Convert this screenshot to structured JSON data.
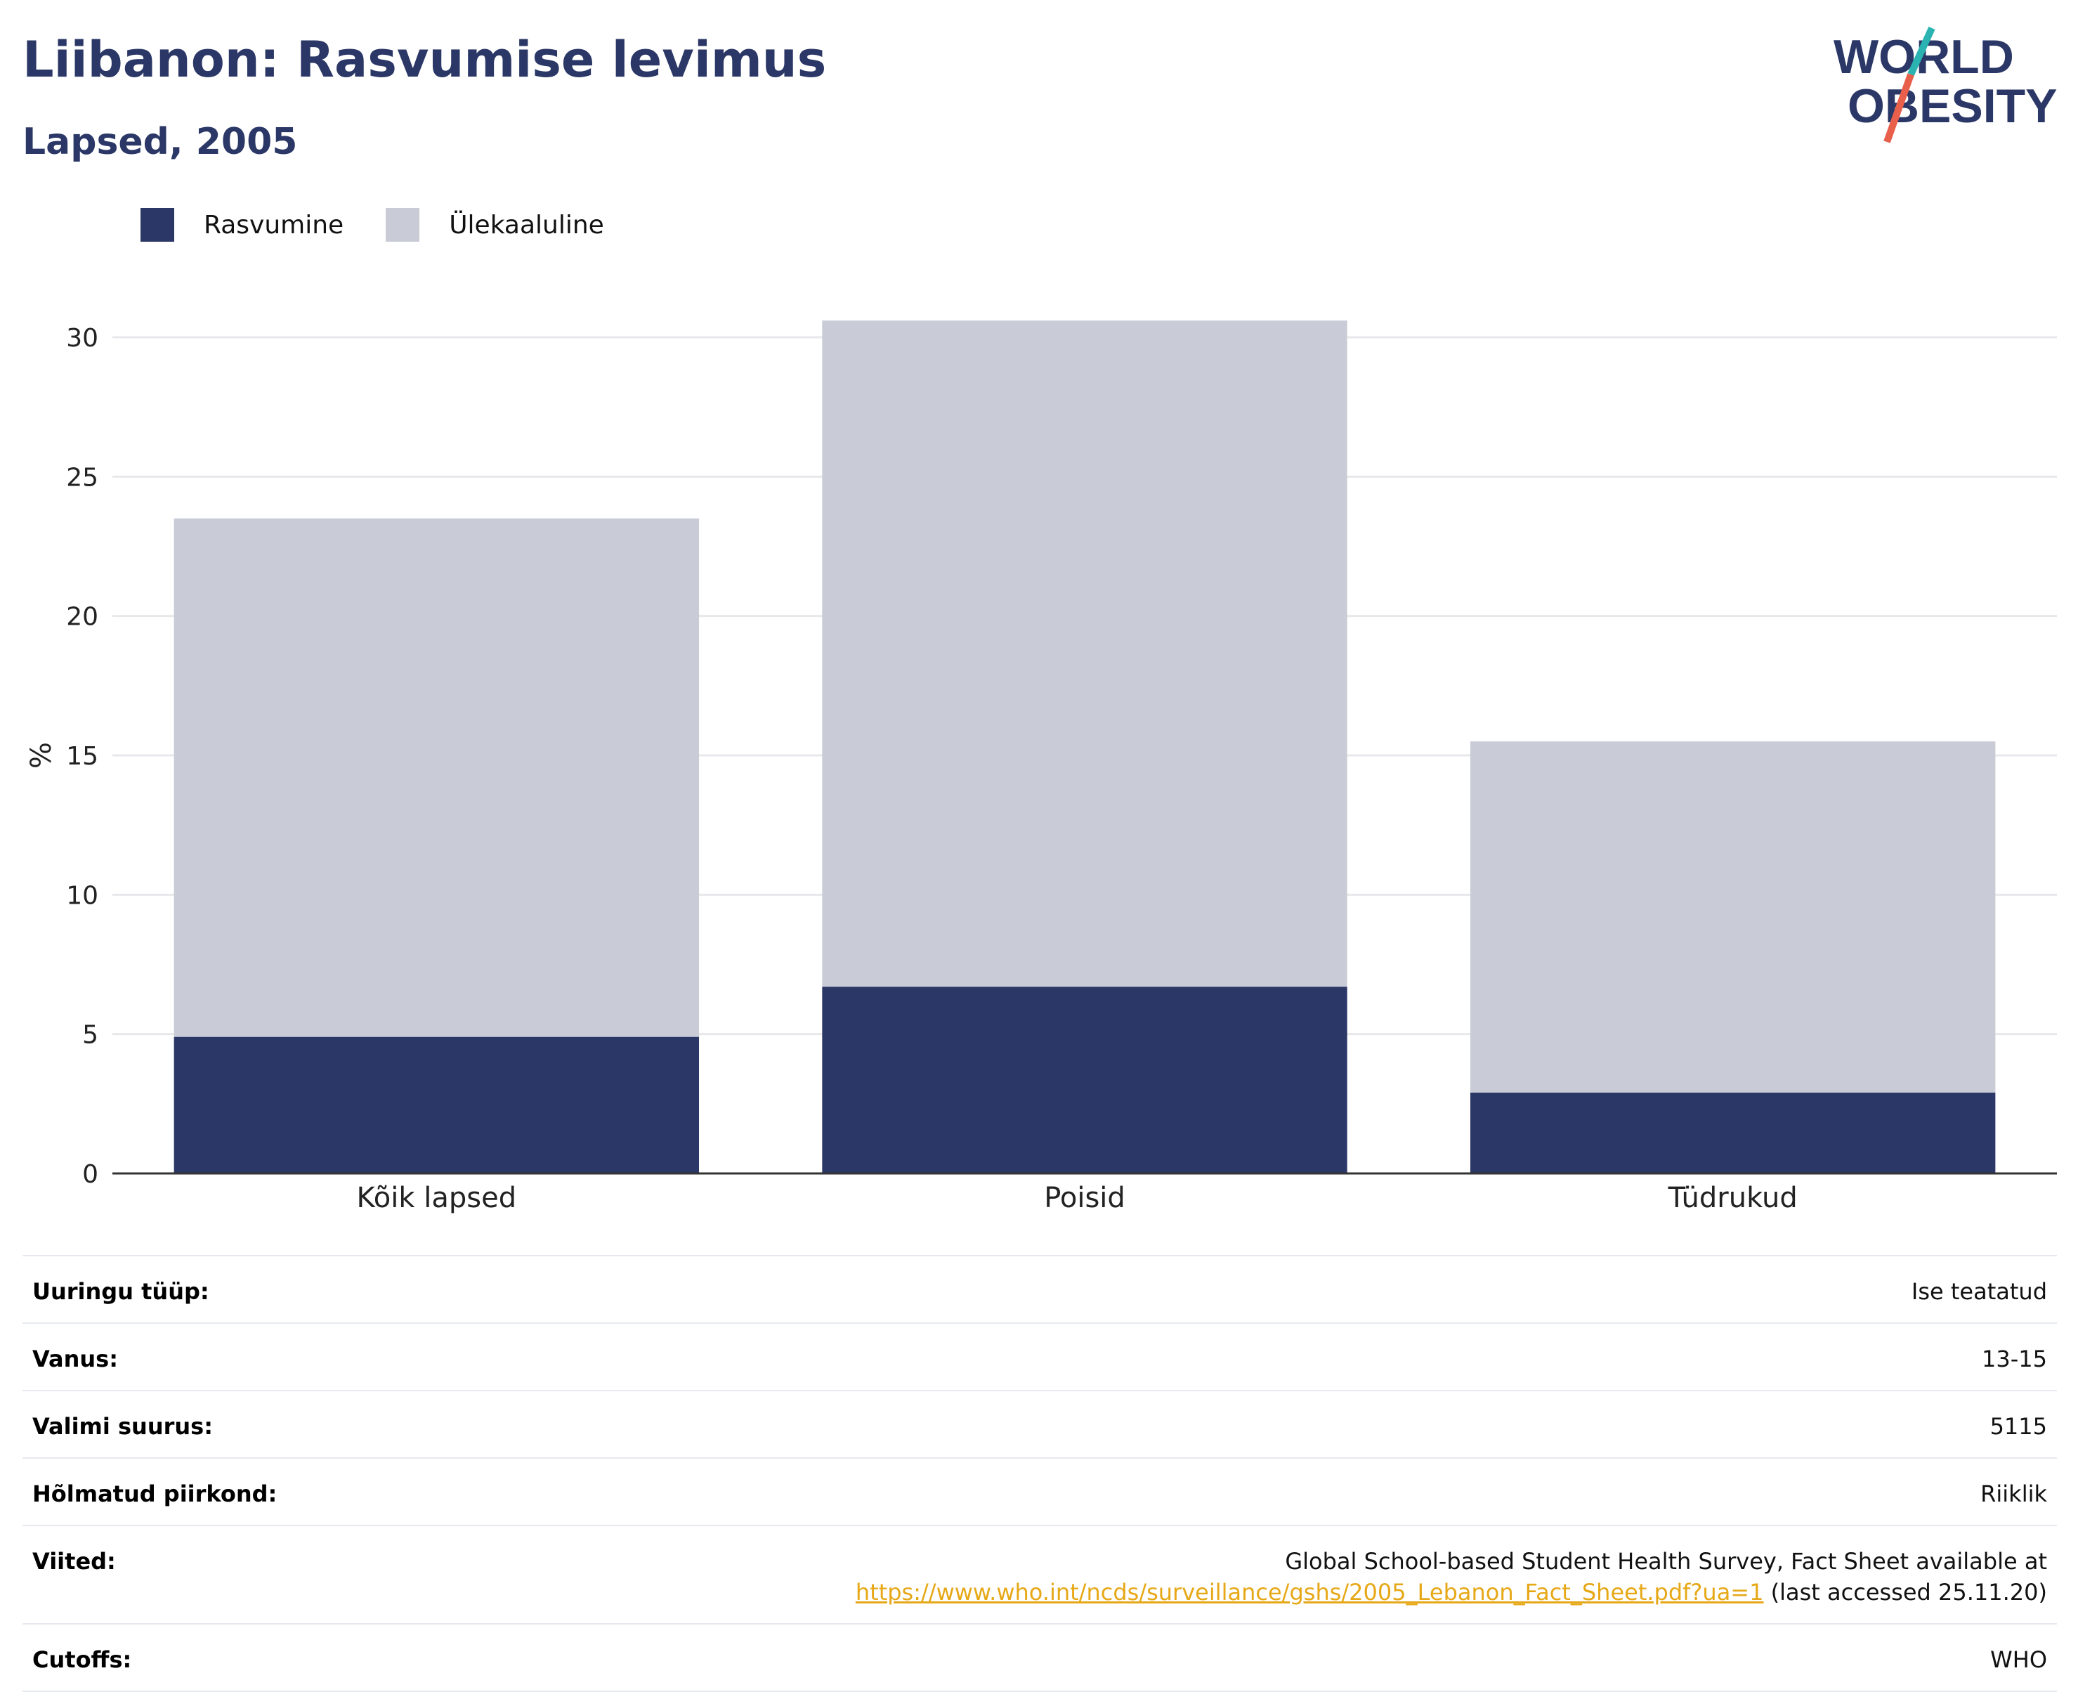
{
  "header": {
    "title": "Liibanon: Rasvumise levimus",
    "subtitle": "Lapsed, 2005"
  },
  "logo": {
    "line1": "WORLD",
    "line2": "OBESITY",
    "colors": [
      "#2b3766",
      "#2bb3b1",
      "#e8604c"
    ]
  },
  "legend": [
    {
      "label": "Rasvumine",
      "color": "#2b3766"
    },
    {
      "label": "Ülekaaluline",
      "color": "#c9cbd6"
    }
  ],
  "chart_data": {
    "type": "bar",
    "stacked": true,
    "categories": [
      "Kõik lapsed",
      "Poisid",
      "Tüdrukud"
    ],
    "series": [
      {
        "name": "Rasvumine",
        "values": [
          4.9,
          6.7,
          2.9
        ],
        "color": "#2b3766"
      },
      {
        "name": "Ülekaaluline",
        "values": [
          18.6,
          23.9,
          12.6
        ],
        "color": "#c9cbd6"
      }
    ],
    "ylabel": "%",
    "ylim": [
      0,
      30
    ],
    "yticks": [
      0,
      5,
      10,
      15,
      20,
      25,
      30
    ],
    "grid": true,
    "legend_position": "top-left"
  },
  "info": {
    "rows": [
      {
        "label": "Uuringu tüüp:",
        "value": "Ise teatatud"
      },
      {
        "label": "Vanus:",
        "value": "13-15"
      },
      {
        "label": "Valimi suurus:",
        "value": "5115"
      },
      {
        "label": "Hõlmatud piirkond:",
        "value": "Riiklik"
      }
    ],
    "references": {
      "label": "Viited:",
      "line1": "Global School-based Student Health Survey, Fact Sheet available at",
      "link": "https://www.who.int/ncds/surveillance/gshs/2005_Lebanon_Fact_Sheet.pdf?ua=1",
      "suffix": " (last accessed 25.11.20)"
    },
    "cutoffs": {
      "label": "Cutoffs:",
      "value": "WHO"
    }
  }
}
